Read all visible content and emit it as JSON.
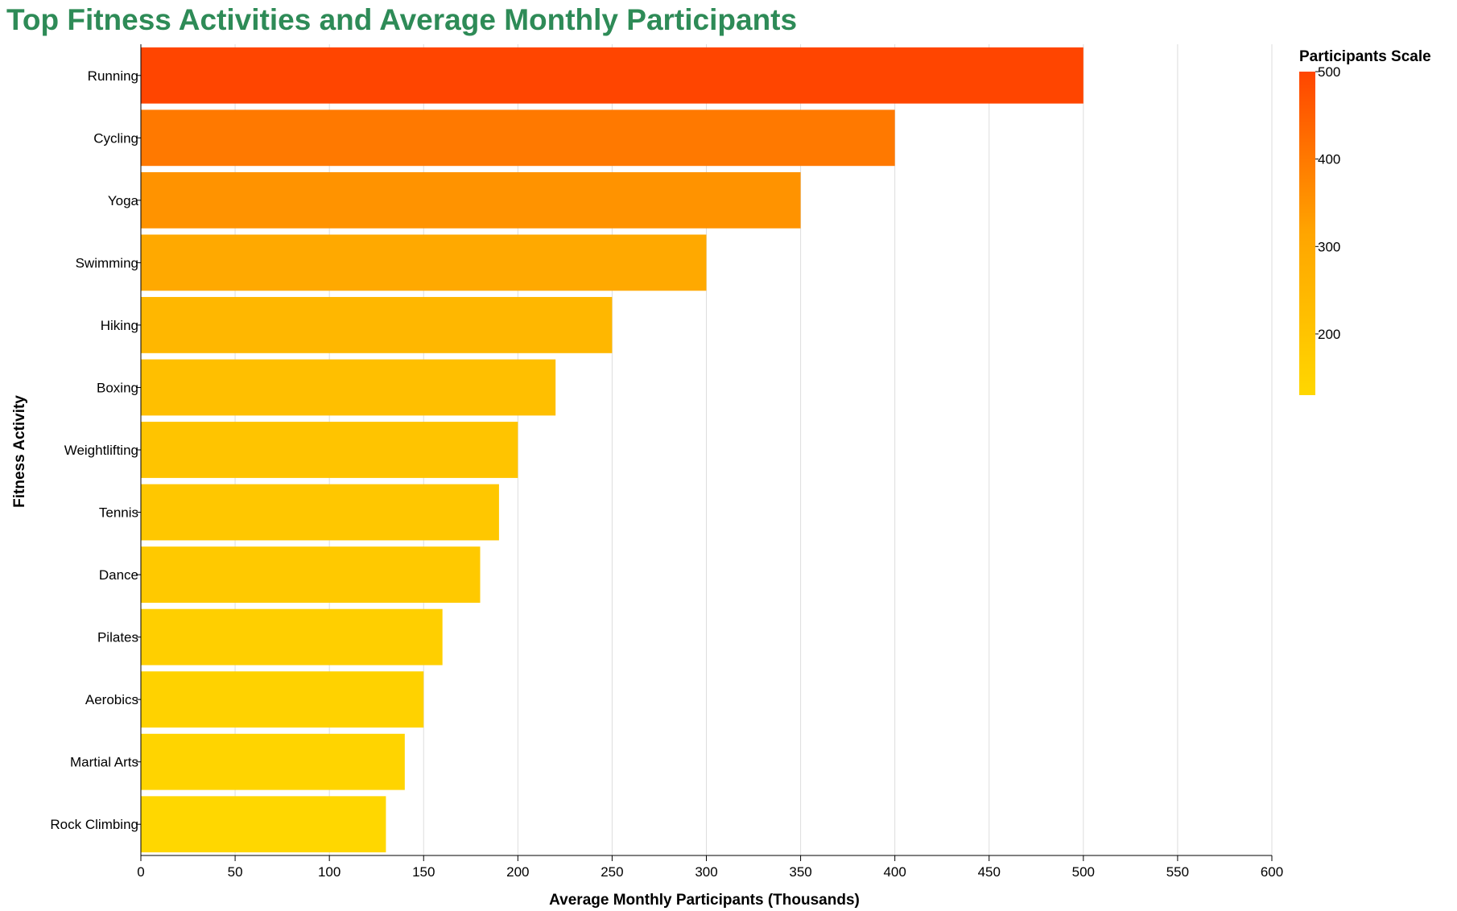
{
  "chart_data": {
    "type": "bar",
    "orientation": "horizontal",
    "title": "Top Fitness Activities and Average Monthly Participants",
    "xlabel": "Average Monthly Participants (Thousands)",
    "ylabel": "Fitness Activity",
    "xlim": [
      0,
      600
    ],
    "xticks": [
      0,
      50,
      100,
      150,
      200,
      250,
      300,
      350,
      400,
      450,
      500,
      550,
      600
    ],
    "grid": true,
    "categories": [
      "Running",
      "Cycling",
      "Yoga",
      "Swimming",
      "Hiking",
      "Boxing",
      "Weightlifting",
      "Tennis",
      "Dance",
      "Pilates",
      "Aerobics",
      "Martial Arts",
      "Rock Climbing"
    ],
    "values": [
      500,
      400,
      350,
      300,
      250,
      220,
      200,
      190,
      180,
      160,
      150,
      140,
      130
    ],
    "legend": {
      "title": "Participants Scale",
      "placement": "top-right",
      "ticks": [
        200,
        300,
        400,
        500
      ],
      "domain": [
        130,
        500
      ]
    },
    "colors": {
      "low": "#ffd700",
      "mid": "#ffa500",
      "high": "#ff4500",
      "title": "#2e8b57",
      "grid": "#dddddd",
      "axis": "#000000"
    }
  }
}
